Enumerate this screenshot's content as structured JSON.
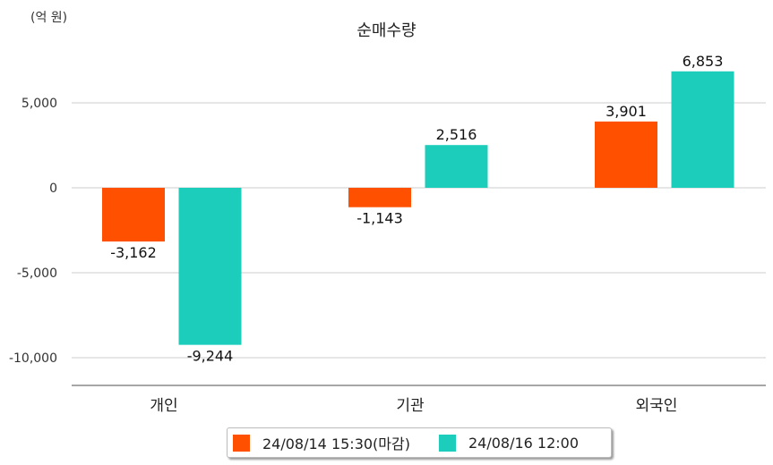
{
  "chart_data": {
    "type": "bar",
    "title": "순매수량",
    "ylabel": "(억 원)",
    "xlabel": "",
    "categories": [
      "개인",
      "기관",
      "외국인"
    ],
    "series": [
      {
        "name": "24/08/14 15:30(마감)",
        "color": "#FF5000",
        "values": [
          -3162,
          -1143,
          3901
        ],
        "labels": [
          "-3,162",
          "-1,143",
          "3,901"
        ]
      },
      {
        "name": "24/08/16 12:00",
        "color": "#1CCDBB",
        "values": [
          -9244,
          2516,
          6853
        ],
        "labels": [
          "-9,244",
          "2,516",
          "6,853"
        ]
      }
    ],
    "yticks": [
      5000,
      0,
      -5000,
      -10000
    ],
    "ytick_labels": [
      "5,000",
      "0",
      "-5,000",
      "-10,000"
    ],
    "ylim": [
      -11600,
      8300
    ],
    "grid": true,
    "legend": "bottom-center"
  }
}
